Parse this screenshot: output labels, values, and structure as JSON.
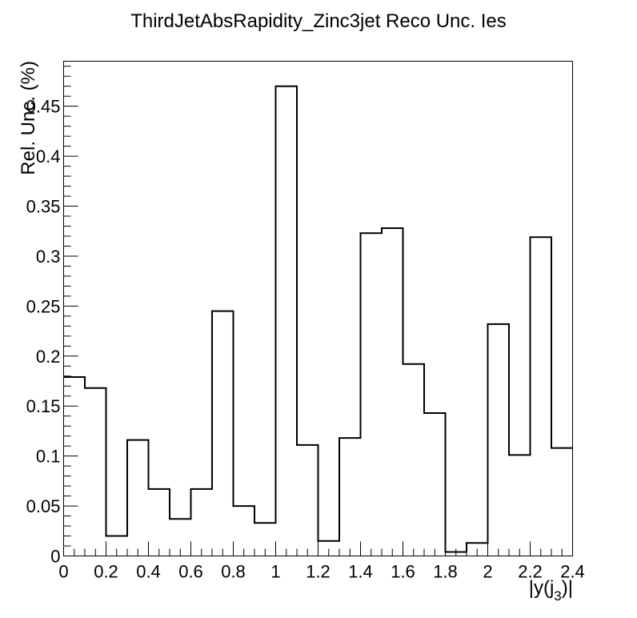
{
  "chart_data": {
    "type": "histogram",
    "title": "ThirdJetAbsRapidity_Zinc3jet Reco Unc. Ies",
    "xlabel": "|y(j",
    "xlabel_sub": "3",
    "xlabel_end": ")|",
    "ylabel": "Rel. Unc. (%)",
    "xlim": [
      0,
      2.4
    ],
    "ylim": [
      0,
      0.495
    ],
    "bin_edges": [
      0,
      0.1,
      0.2,
      0.3,
      0.4,
      0.5,
      0.6,
      0.7,
      0.8,
      0.9,
      1.0,
      1.1,
      1.2,
      1.3,
      1.4,
      1.5,
      1.6,
      1.7,
      1.8,
      1.9,
      2.0,
      2.1,
      2.2,
      2.3,
      2.4
    ],
    "values": [
      0.179,
      0.168,
      0.02,
      0.116,
      0.067,
      0.037,
      0.067,
      0.245,
      0.05,
      0.033,
      0.47,
      0.111,
      0.015,
      0.118,
      0.323,
      0.328,
      0.192,
      0.143,
      0.004,
      0.013,
      0.232,
      0.101,
      0.319,
      0.108
    ],
    "x_ticks": [
      {
        "v": 0,
        "label": "0"
      },
      {
        "v": 0.2,
        "label": "0.2"
      },
      {
        "v": 0.4,
        "label": "0.4"
      },
      {
        "v": 0.6,
        "label": "0.6"
      },
      {
        "v": 0.8,
        "label": "0.8"
      },
      {
        "v": 1.0,
        "label": "1"
      },
      {
        "v": 1.2,
        "label": "1.2"
      },
      {
        "v": 1.4,
        "label": "1.4"
      },
      {
        "v": 1.6,
        "label": "1.6"
      },
      {
        "v": 1.8,
        "label": "1.8"
      },
      {
        "v": 2.0,
        "label": "2"
      },
      {
        "v": 2.2,
        "label": "2.2"
      },
      {
        "v": 2.4,
        "label": "2.4"
      }
    ],
    "y_ticks": [
      {
        "v": 0,
        "label": "0"
      },
      {
        "v": 0.05,
        "label": "0.05"
      },
      {
        "v": 0.1,
        "label": "0.1"
      },
      {
        "v": 0.15,
        "label": "0.15"
      },
      {
        "v": 0.2,
        "label": "0.2"
      },
      {
        "v": 0.25,
        "label": "0.25"
      },
      {
        "v": 0.3,
        "label": "0.3"
      },
      {
        "v": 0.35,
        "label": "0.35"
      },
      {
        "v": 0.4,
        "label": "0.4"
      },
      {
        "v": 0.45,
        "label": "0.45"
      }
    ],
    "grid": false,
    "line_color": "#000000"
  }
}
